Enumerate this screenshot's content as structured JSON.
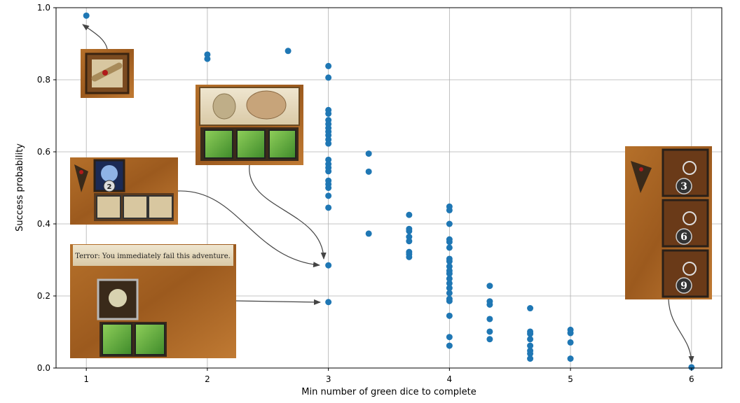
{
  "chart_data": {
    "type": "scatter",
    "title": "",
    "xlabel": "Min number of green dice to complete",
    "ylabel": "Success probability",
    "xlim": [
      0.75,
      6.25
    ],
    "ylim": [
      0.0,
      1.0
    ],
    "xticks": [
      1,
      2,
      3,
      4,
      5,
      6
    ],
    "yticks": [
      0.0,
      0.2,
      0.4,
      0.6,
      0.8,
      1.0
    ],
    "grid": true,
    "marker_color": "#1f77b4",
    "series": [
      {
        "points": [
          [
            1,
            0.978
          ],
          [
            2,
            0.87
          ],
          [
            2,
            0.858
          ],
          [
            2.667,
            0.88
          ],
          [
            3,
            0.838
          ],
          [
            3,
            0.806
          ],
          [
            3,
            0.716
          ],
          [
            3,
            0.706
          ],
          [
            3,
            0.688
          ],
          [
            3,
            0.677
          ],
          [
            3,
            0.666
          ],
          [
            3,
            0.656
          ],
          [
            3,
            0.646
          ],
          [
            3,
            0.634
          ],
          [
            3,
            0.623
          ],
          [
            3,
            0.578
          ],
          [
            3,
            0.566
          ],
          [
            3,
            0.556
          ],
          [
            3,
            0.546
          ],
          [
            3,
            0.52
          ],
          [
            3,
            0.51
          ],
          [
            3,
            0.5
          ],
          [
            3,
            0.478
          ],
          [
            3,
            0.445
          ],
          [
            3,
            0.285
          ],
          [
            3,
            0.183
          ],
          [
            3.333,
            0.595
          ],
          [
            3.333,
            0.545
          ],
          [
            3.333,
            0.373
          ],
          [
            3.667,
            0.425
          ],
          [
            3.667,
            0.386
          ],
          [
            3.667,
            0.38
          ],
          [
            3.667,
            0.364
          ],
          [
            3.667,
            0.352
          ],
          [
            3.667,
            0.322
          ],
          [
            3.667,
            0.316
          ],
          [
            3.667,
            0.308
          ],
          [
            4,
            0.448
          ],
          [
            4,
            0.438
          ],
          [
            4,
            0.4
          ],
          [
            4,
            0.357
          ],
          [
            4,
            0.35
          ],
          [
            4,
            0.334
          ],
          [
            4,
            0.303
          ],
          [
            4,
            0.296
          ],
          [
            4,
            0.282
          ],
          [
            4,
            0.27
          ],
          [
            4,
            0.262
          ],
          [
            4,
            0.248
          ],
          [
            4,
            0.235
          ],
          [
            4,
            0.222
          ],
          [
            4,
            0.208
          ],
          [
            4,
            0.192
          ],
          [
            4,
            0.186
          ],
          [
            4,
            0.145
          ],
          [
            4,
            0.086
          ],
          [
            4,
            0.062
          ],
          [
            4.333,
            0.228
          ],
          [
            4.333,
            0.185
          ],
          [
            4.333,
            0.176
          ],
          [
            4.333,
            0.136
          ],
          [
            4.333,
            0.101
          ],
          [
            4.333,
            0.08
          ],
          [
            4.667,
            0.166
          ],
          [
            4.667,
            0.101
          ],
          [
            4.667,
            0.095
          ],
          [
            4.667,
            0.08
          ],
          [
            4.667,
            0.062
          ],
          [
            4.667,
            0.048
          ],
          [
            4.667,
            0.04
          ],
          [
            4.667,
            0.026
          ],
          [
            5,
            0.106
          ],
          [
            5,
            0.097
          ],
          [
            5,
            0.071
          ],
          [
            5,
            0.026
          ],
          [
            6,
            0.002
          ]
        ]
      }
    ],
    "annotations": [
      {
        "image": "scroll-card-icon",
        "points_to": [
          1,
          0.978
        ]
      },
      {
        "image": "cultist-card-three-green-dice",
        "points_to": [
          3,
          0.285
        ]
      },
      {
        "image": "skull-card-two-scrolls",
        "points_to": [
          3,
          0.285
        ]
      },
      {
        "image": "terror-card-two-green-dice",
        "text": "Terror: You immediately fail this adventure.",
        "points_to": [
          3,
          0.183
        ]
      },
      {
        "image": "magnifier-card-3-6-9",
        "points_to": [
          6,
          0.002
        ]
      }
    ],
    "card_numbers": [
      "2",
      "3",
      "6",
      "9"
    ]
  }
}
